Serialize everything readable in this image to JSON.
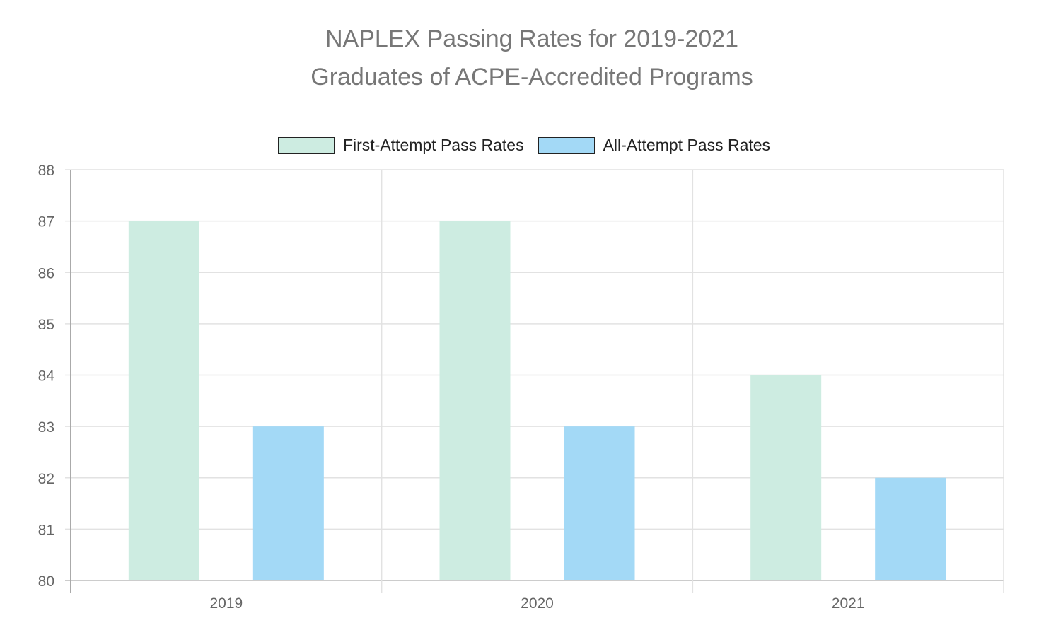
{
  "chart_data": {
    "type": "bar",
    "title": [
      "NAPLEX Passing Rates for 2019-2021",
      "Graduates of ACPE-Accredited Programs"
    ],
    "categories": [
      "2019",
      "2020",
      "2021"
    ],
    "series": [
      {
        "name": "First-Attempt Pass Rates",
        "values": [
          87,
          87,
          84
        ],
        "color": "#cdece1"
      },
      {
        "name": "All-Attempt Pass Rates",
        "values": [
          83,
          83,
          82
        ],
        "color": "#a3d9f6"
      }
    ],
    "ylim": [
      80,
      88
    ],
    "yticks": [
      "80",
      "81",
      "82",
      "83",
      "84",
      "85",
      "86",
      "87",
      "88"
    ],
    "grid": true,
    "legend_position": "top-center",
    "xlabel": "",
    "ylabel": ""
  }
}
